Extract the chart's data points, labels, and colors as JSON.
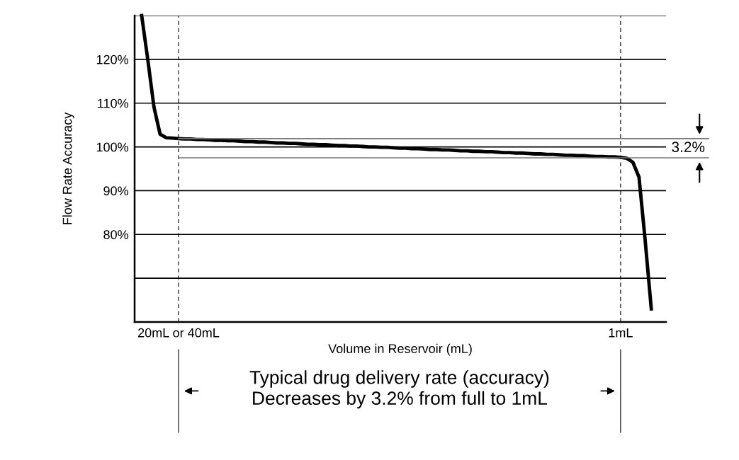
{
  "chart_data": {
    "type": "line",
    "ylabel": "Flow Rate Accuracy",
    "xlabel": "Volume in Reservoir (mL)",
    "categories": [
      null,
      null,
      null,
      null,
      null,
      null,
      "20mL or 40mL",
      null,
      null,
      null,
      null,
      null,
      null,
      null,
      null,
      null,
      null,
      null,
      null,
      null,
      null,
      null,
      null,
      null,
      null,
      null,
      null,
      null,
      null,
      null,
      null,
      null,
      null,
      null,
      null,
      null,
      null,
      null,
      null,
      null,
      null,
      null,
      null,
      null,
      null,
      null,
      null,
      null,
      null,
      null,
      null,
      null,
      null,
      null,
      null,
      null,
      null,
      null,
      null,
      null,
      null,
      null,
      null,
      null,
      null,
      null,
      null,
      null,
      null,
      null,
      null,
      null,
      null,
      null,
      null,
      null,
      null,
      null,
      "1mL",
      null,
      null,
      null,
      null,
      null
    ],
    "series": [
      {
        "color": "#000000",
        "values": [
          130,
          119.9,
          109.1,
          102.9,
          102.1,
          102.0,
          101.9,
          101.8,
          101.8,
          101.7,
          101.7,
          101.6,
          101.5,
          101.5,
          101.4,
          101.4,
          101.3,
          101.2,
          101.2,
          101.1,
          101.1,
          101.0,
          100.9,
          100.9,
          100.8,
          100.8,
          100.7,
          100.6,
          100.6,
          100.5,
          100.5,
          100.4,
          100.3,
          100.3,
          100.2,
          100.2,
          100.1,
          100.0,
          100.0,
          99.9,
          99.9,
          99.8,
          99.7,
          99.7,
          99.6,
          99.6,
          99.5,
          99.4,
          99.4,
          99.3,
          99.3,
          99.2,
          99.1,
          99.1,
          99.0,
          99.0,
          98.9,
          98.9,
          98.8,
          98.7,
          98.7,
          98.6,
          98.6,
          98.5,
          98.4,
          98.4,
          98.3,
          98.3,
          98.2,
          98.1,
          98.1,
          98.0,
          98.0,
          97.9,
          97.8,
          97.8,
          97.7,
          97.7,
          97.6,
          97.4,
          96.5,
          93.1,
          78.7,
          63
        ]
      }
    ],
    "ylim": [
      60,
      130
    ],
    "yticks": [
      {
        "value": 70,
        "label": null
      },
      {
        "value": 80,
        "label": "80%"
      },
      {
        "value": 90,
        "label": "90%"
      },
      {
        "value": 100,
        "label": "100%"
      },
      {
        "value": 110,
        "label": "110%"
      },
      {
        "value": 120,
        "label": "120%"
      },
      {
        "value": 130,
        "label": null
      }
    ],
    "grid": "y",
    "marker": "none",
    "line_style": "solid",
    "ref_lines": [
      {
        "axis": "x",
        "value": "20mL or 40mL",
        "line_style": "dashed",
        "color": "#000000"
      },
      {
        "axis": "x",
        "value": "1mL",
        "line_style": "dashed",
        "color": "#000000"
      },
      {
        "axis": "y",
        "value": 101.9,
        "color": "#777777"
      },
      {
        "axis": "y",
        "value": 97.5,
        "color": "#777777"
      }
    ],
    "annotations": [
      "3.2%",
      "Typical drug delivery rate (accuracy)\nDecreases by 3.2% from full to 1mL"
    ]
  }
}
